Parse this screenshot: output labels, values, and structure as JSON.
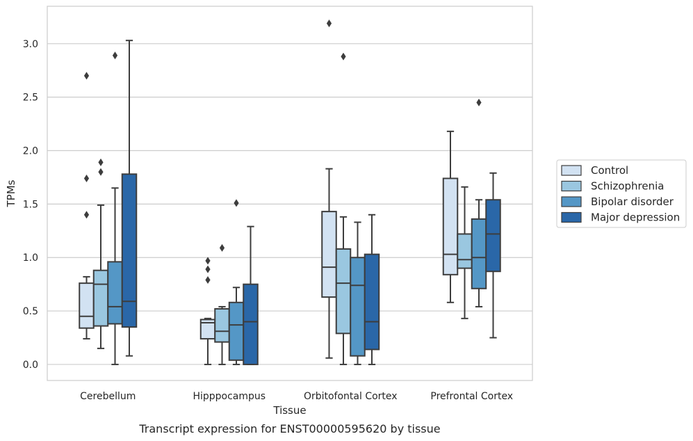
{
  "chart_data": {
    "type": "box",
    "xlabel": "Tissue",
    "ylabel": "TPMs",
    "caption": "Transcript expression for ENST00000595620 by tissue",
    "ylim": [
      -0.15,
      3.35
    ],
    "yticks": [
      "0.0",
      "0.5",
      "1.0",
      "1.5",
      "2.0",
      "2.5",
      "3.0"
    ],
    "grid": "horizontal",
    "legend_placement": "right",
    "categories": [
      "Cerebellum",
      "Hipppocampus",
      "Orbitofontal Cortex",
      "Prefrontal Cortex"
    ],
    "series": [
      {
        "name": "Control",
        "color": "#d2e2f2",
        "boxes": [
          {
            "whislo": 0.24,
            "q1": 0.34,
            "med": 0.45,
            "q3": 0.76,
            "whishi": 0.82,
            "fliers": [
              1.4,
              1.74,
              2.7
            ]
          },
          {
            "whislo": 0.0,
            "q1": 0.24,
            "med": 0.39,
            "q3": 0.42,
            "whishi": 0.43,
            "fliers": [
              0.79,
              0.89,
              0.97
            ]
          },
          {
            "whislo": 0.06,
            "q1": 0.63,
            "med": 0.91,
            "q3": 1.43,
            "whishi": 1.83,
            "fliers": [
              3.19
            ]
          },
          {
            "whislo": 0.58,
            "q1": 0.84,
            "med": 1.03,
            "q3": 1.74,
            "whishi": 2.18,
            "fliers": []
          }
        ]
      },
      {
        "name": "Schizophrenia",
        "color": "#9ac7e0",
        "boxes": [
          {
            "whislo": 0.15,
            "q1": 0.36,
            "med": 0.75,
            "q3": 0.88,
            "whishi": 1.49,
            "fliers": [
              1.8,
              1.89
            ]
          },
          {
            "whislo": 0.0,
            "q1": 0.21,
            "med": 0.31,
            "q3": 0.52,
            "whishi": 0.54,
            "fliers": [
              1.09
            ]
          },
          {
            "whislo": 0.0,
            "q1": 0.29,
            "med": 0.76,
            "q3": 1.08,
            "whishi": 1.38,
            "fliers": [
              2.88
            ]
          },
          {
            "whislo": 0.43,
            "q1": 0.9,
            "med": 0.98,
            "q3": 1.22,
            "whishi": 1.66,
            "fliers": []
          }
        ]
      },
      {
        "name": "Bipolar disorder",
        "color": "#5497c6",
        "boxes": [
          {
            "whislo": 0.0,
            "q1": 0.38,
            "med": 0.54,
            "q3": 0.96,
            "whishi": 1.65,
            "fliers": [
              2.89
            ]
          },
          {
            "whislo": 0.0,
            "q1": 0.04,
            "med": 0.37,
            "q3": 0.58,
            "whishi": 0.72,
            "fliers": [
              1.51
            ]
          },
          {
            "whislo": 0.0,
            "q1": 0.08,
            "med": 0.74,
            "q3": 1.0,
            "whishi": 1.33,
            "fliers": []
          },
          {
            "whislo": 0.54,
            "q1": 0.71,
            "med": 1.0,
            "q3": 1.36,
            "whishi": 1.54,
            "fliers": [
              2.45
            ]
          }
        ]
      },
      {
        "name": "Major depression",
        "color": "#2a67a8",
        "boxes": [
          {
            "whislo": 0.08,
            "q1": 0.35,
            "med": 0.59,
            "q3": 1.78,
            "whishi": 3.03,
            "fliers": []
          },
          {
            "whislo": 0.0,
            "q1": 0.0,
            "med": 0.4,
            "q3": 0.75,
            "whishi": 1.29,
            "fliers": []
          },
          {
            "whislo": 0.0,
            "q1": 0.14,
            "med": 0.4,
            "q3": 1.03,
            "whishi": 1.4,
            "fliers": []
          },
          {
            "whislo": 0.25,
            "q1": 0.87,
            "med": 1.22,
            "q3": 1.54,
            "whishi": 1.79,
            "fliers": []
          }
        ]
      }
    ]
  }
}
